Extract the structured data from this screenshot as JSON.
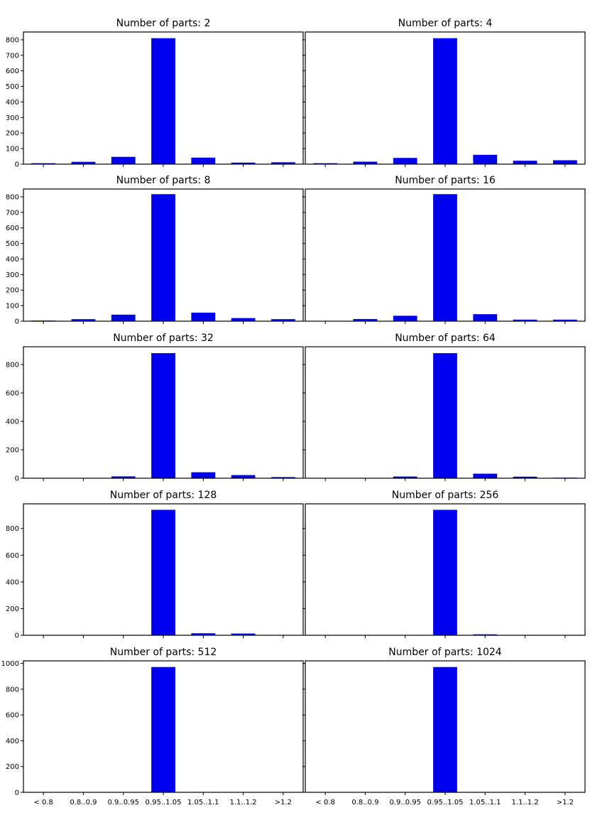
{
  "chart_data": {
    "type": "bar",
    "layout": "5 rows x 2 columns, shared x categories",
    "bar_color": "#0000ee",
    "categories": [
      "< 0.8",
      "0.8..0.9",
      "0.9..0.95",
      "0.95..1.05",
      "1.05..1.1",
      "1.1..1.2",
      ">1.2"
    ],
    "panels": [
      {
        "title": "Number of parts: 2",
        "values": [
          6,
          15,
          47,
          810,
          42,
          10,
          12
        ],
        "ylim": [
          0,
          850
        ],
        "yticks": [
          0,
          100,
          200,
          300,
          400,
          500,
          600,
          700,
          800
        ]
      },
      {
        "title": "Number of parts: 4",
        "values": [
          6,
          16,
          40,
          810,
          60,
          22,
          25
        ],
        "ylim": [
          0,
          850
        ],
        "yticks": [
          0,
          100,
          200,
          300,
          400,
          500,
          600,
          700,
          800
        ]
      },
      {
        "title": "Number of parts: 8",
        "values": [
          4,
          13,
          42,
          817,
          55,
          20,
          13
        ],
        "ylim": [
          0,
          850
        ],
        "yticks": [
          0,
          100,
          200,
          300,
          400,
          500,
          600,
          700,
          800
        ]
      },
      {
        "title": "Number of parts: 16",
        "values": [
          1,
          14,
          35,
          817,
          45,
          10,
          10
        ],
        "ylim": [
          0,
          850
        ],
        "yticks": [
          0,
          100,
          200,
          300,
          400,
          500,
          600,
          700,
          800
        ]
      },
      {
        "title": "Number of parts: 32",
        "values": [
          0,
          2,
          13,
          880,
          42,
          22,
          8
        ],
        "ylim": [
          0,
          925
        ],
        "yticks": [
          0,
          200,
          400,
          600,
          800
        ]
      },
      {
        "title": "Number of parts: 64",
        "values": [
          0,
          1,
          12,
          880,
          32,
          11,
          4
        ],
        "ylim": [
          0,
          925
        ],
        "yticks": [
          0,
          200,
          400,
          600,
          800
        ]
      },
      {
        "title": "Number of parts: 128",
        "values": [
          0,
          0,
          3,
          940,
          15,
          13,
          0
        ],
        "ylim": [
          0,
          985
        ],
        "yticks": [
          0,
          200,
          400,
          600,
          800
        ]
      },
      {
        "title": "Number of parts: 256",
        "values": [
          0,
          0,
          0,
          940,
          7,
          3,
          0
        ],
        "ylim": [
          0,
          985
        ],
        "yticks": [
          0,
          200,
          400,
          600,
          800
        ]
      },
      {
        "title": "Number of parts: 512",
        "values": [
          0,
          0,
          0,
          972,
          3,
          0,
          0
        ],
        "ylim": [
          0,
          1020
        ],
        "yticks": [
          0,
          200,
          400,
          600,
          800,
          1000
        ]
      },
      {
        "title": "Number of parts: 1024",
        "values": [
          0,
          0,
          0,
          972,
          0,
          0,
          0
        ],
        "ylim": [
          0,
          1020
        ],
        "yticks": [
          0,
          200,
          400,
          600,
          800,
          1000
        ]
      }
    ],
    "xlabel": "",
    "ylabel": "",
    "grid": false
  }
}
